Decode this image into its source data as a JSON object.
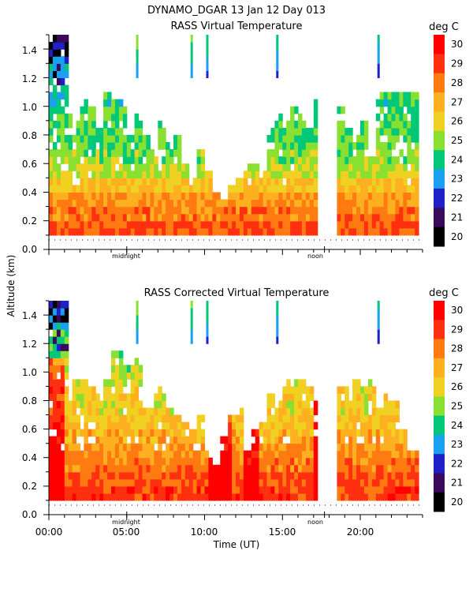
{
  "header": {
    "title": "DYNAMO_DGAR  13 Jan 12 Day 013"
  },
  "y_axis_title": "Altitude (km)",
  "x_axis_title": "Time (UT)",
  "colors": {
    "scale": [
      "#000000",
      "#3a0a5a",
      "#2020c8",
      "#1aa0f0",
      "#00c878",
      "#8ae030",
      "#f0d020",
      "#ffb020",
      "#ff7a10",
      "#ff3010",
      "#ff0000"
    ],
    "axis": "#000000"
  },
  "chart_data": [
    {
      "type": "heatmap",
      "title": "RASS Virtual Temperature",
      "colorbar_unit": "deg C",
      "colorbar_ticks": [
        "30",
        "29",
        "28",
        "27",
        "26",
        "25",
        "24",
        "23",
        "22",
        "21",
        "20"
      ],
      "xlim": [
        0,
        24
      ],
      "ylim": [
        0,
        1.5
      ],
      "y_ticks": [
        "1.4",
        "1.2",
        "1.0",
        "0.8",
        "0.6",
        "0.4",
        "0.2",
        "0.0"
      ],
      "x_annotations": [
        "midnight",
        "noon"
      ],
      "data_gaps_hours": [
        [
          17.3,
          18.6
        ]
      ],
      "approx_profile": {
        "altitude_km": [
          0.15,
          0.25,
          0.35,
          0.45,
          0.55,
          0.65,
          0.75,
          0.85,
          0.95,
          1.05,
          1.15,
          1.25,
          1.35,
          1.45
        ],
        "temperature_c": [
          28.5,
          28,
          27.5,
          26.5,
          25.5,
          25,
          24.5,
          24.5,
          24.5,
          24,
          24,
          23.5,
          22.5,
          21.5
        ]
      }
    },
    {
      "type": "heatmap",
      "title": "RASS Corrected Virtual Temperature",
      "colorbar_unit": "deg C",
      "colorbar_ticks": [
        "30",
        "29",
        "28",
        "27",
        "26",
        "25",
        "24",
        "23",
        "22",
        "21",
        "20"
      ],
      "xlim": [
        0,
        24
      ],
      "ylim": [
        0,
        1.5
      ],
      "y_ticks": [
        "1.4",
        "1.2",
        "1.0",
        "0.8",
        "0.6",
        "0.4",
        "0.2",
        "0.0"
      ],
      "x_ticks": [
        "00:00",
        "05:00",
        "10:00",
        "15:00",
        "20:00"
      ],
      "x_annotations": [
        "midnight",
        "noon"
      ],
      "data_gaps_hours": [
        [
          17.3,
          18.6
        ]
      ],
      "approx_profile": {
        "altitude_km": [
          0.15,
          0.25,
          0.35,
          0.45,
          0.55,
          0.65,
          0.75,
          0.85,
          0.95,
          1.05,
          1.15,
          1.25,
          1.35,
          1.45
        ],
        "temperature_c": [
          29,
          28.5,
          28,
          27.5,
          27,
          26.5,
          26,
          26,
          25.5,
          25,
          24.5,
          24,
          23,
          22
        ]
      }
    }
  ]
}
